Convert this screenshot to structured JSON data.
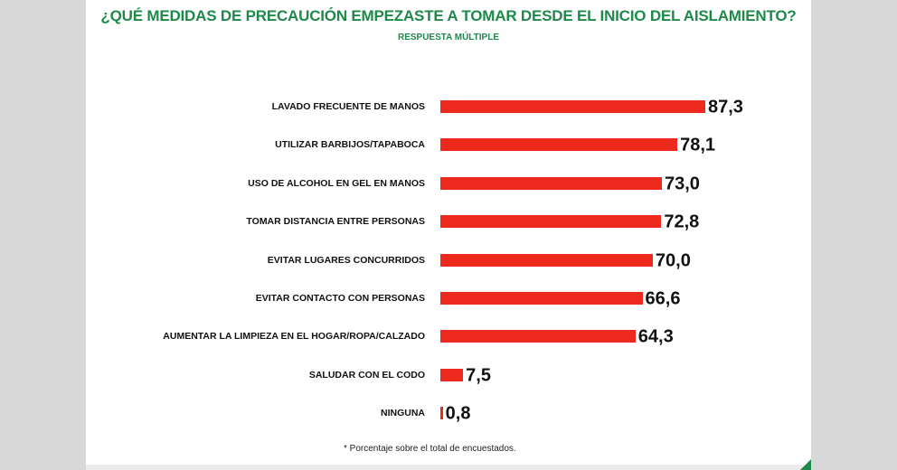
{
  "chart_data": {
    "type": "bar",
    "orientation": "horizontal",
    "title": "¿QUÉ MEDIDAS DE PRECAUCIÓN EMPEZASTE A TOMAR DESDE EL INICIO DEL AISLAMIENTO?",
    "subtitle": "RESPUESTA MÚLTIPLE",
    "categories": [
      "LAVADO FRECUENTE DE MANOS",
      "UTILIZAR BARBIJOS/TAPABOCA",
      "USO DE ALCOHOL EN GEL EN MANOS",
      "TOMAR DISTANCIA  ENTRE PERSONAS",
      "EVITAR LUGARES CONCURRIDOS",
      "EVITAR  CONTACTO CON PERSONAS",
      "AUMENTAR LA LIMPIEZA EN EL HOGAR/ROPA/CALZADO",
      "SALUDAR CON EL CODO",
      "NINGUNA"
    ],
    "values": [
      87.3,
      78.1,
      73.0,
      72.8,
      70.0,
      66.6,
      64.3,
      7.5,
      0.8
    ],
    "value_labels": [
      "87,3",
      "78,1",
      "73,0",
      "72,8",
      "70,0",
      "66,6",
      "64,3",
      "7,5",
      "0,8"
    ],
    "note": "* Porcentaje sobre el total de encuestados.",
    "bar_color": "#ee2a1f",
    "title_color": "#1e8a4a",
    "grid": false
  }
}
